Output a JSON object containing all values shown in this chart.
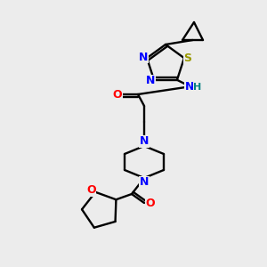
{
  "background_color": "#ececec",
  "bond_color": "#000000",
  "atom_colors": {
    "N": "#0000ff",
    "O": "#ff0000",
    "S": "#999900",
    "H": "#008080",
    "C": "#000000"
  },
  "figsize": [
    3.0,
    3.0
  ],
  "dpi": 100
}
